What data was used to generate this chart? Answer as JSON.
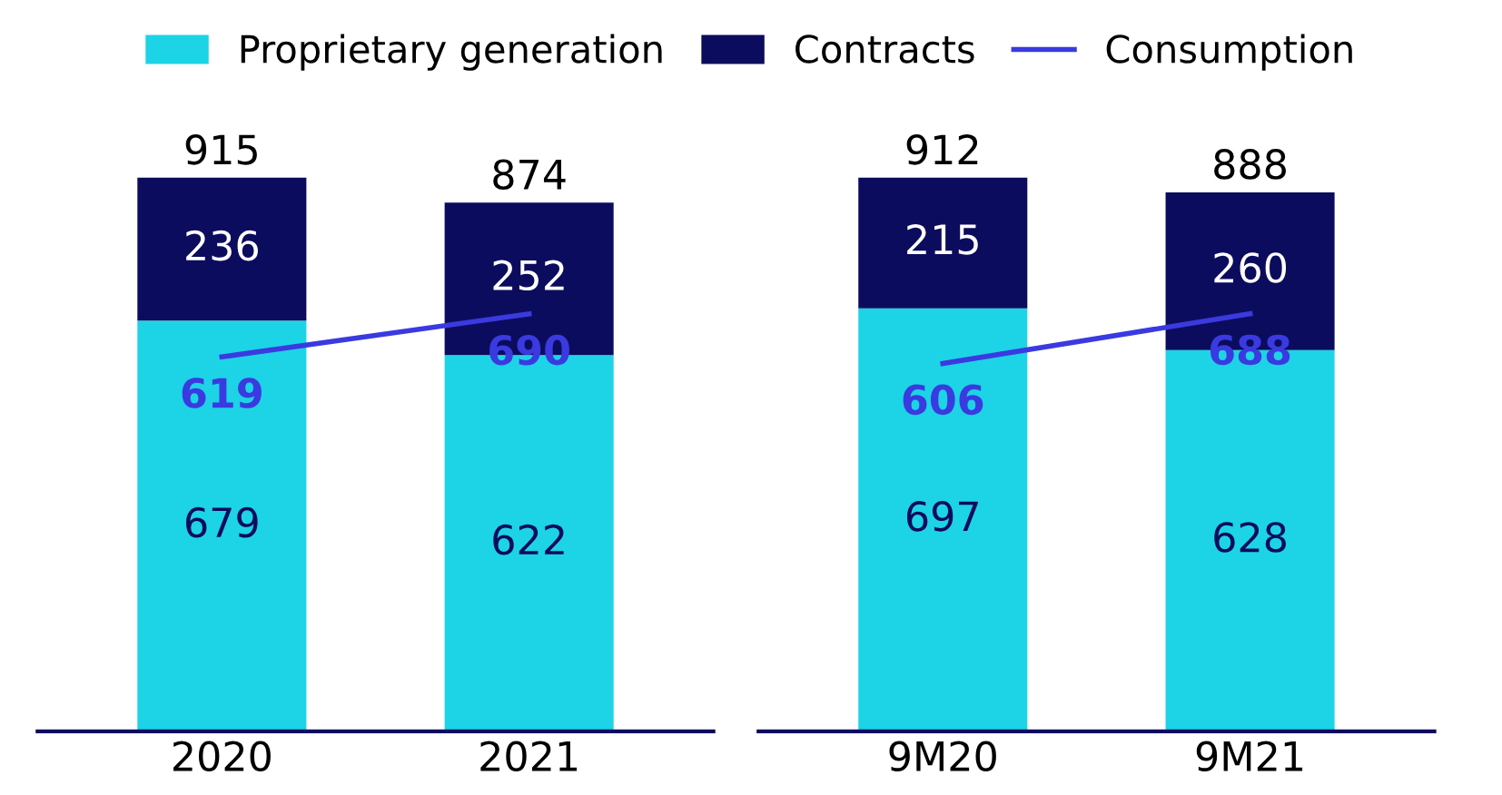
{
  "chart_data": [
    {
      "type": "bar",
      "stacked": true,
      "categories": [
        "2020",
        "2021"
      ],
      "data_labels": true,
      "legend": "top",
      "totals": [
        "915",
        "874"
      ],
      "series": [
        {
          "name": "Proprietary generation",
          "color": "#1dd3e6",
          "values": [
            679,
            622
          ]
        },
        {
          "name": "Contracts",
          "color": "#0c0c5e",
          "values": [
            236,
            252
          ]
        },
        {
          "name": "Consumption",
          "type": "line",
          "color": "#3a3ae0",
          "marker": "none",
          "values": [
            619,
            690
          ]
        }
      ]
    },
    {
      "type": "bar",
      "stacked": true,
      "categories": [
        "9M20",
        "9M21"
      ],
      "data_labels": true,
      "totals": [
        "912",
        "888"
      ],
      "series": [
        {
          "color": "#1dd3e6",
          "values": [
            697,
            628
          ]
        },
        {
          "color": "#0c0c5e",
          "values": [
            215,
            260
          ]
        },
        {
          "type": "line",
          "color": "#3a3ae0",
          "marker": "none",
          "values": [
            606,
            688
          ]
        }
      ]
    }
  ]
}
